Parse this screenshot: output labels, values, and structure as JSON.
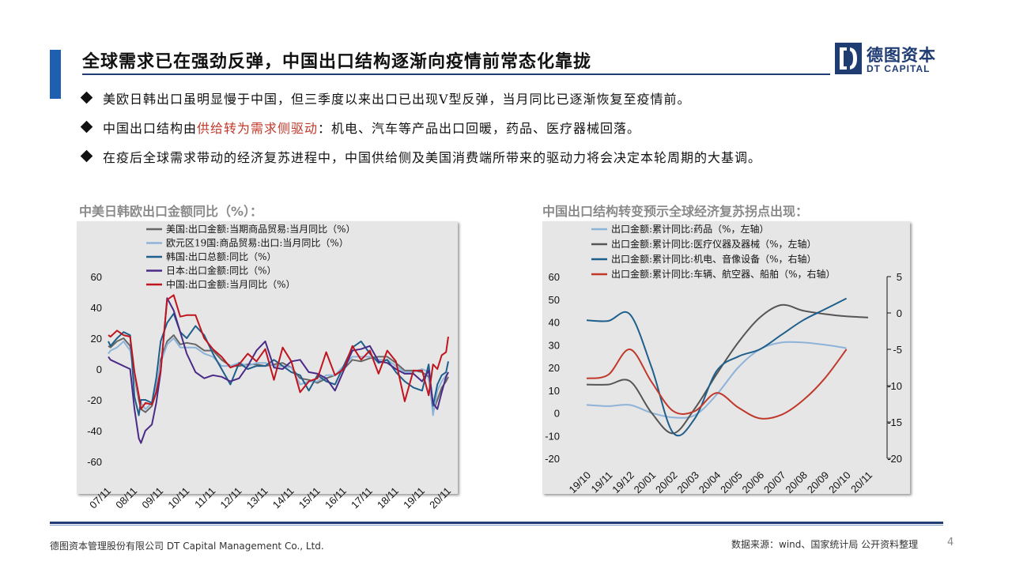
{
  "header": {
    "title": "全球需求已在强劲反弹，中国出口结构逐渐向疫情前常态化靠拢",
    "logo_cn": "德图资本",
    "logo_en": "DT CAPITAL"
  },
  "bullets": [
    {
      "pre": "美欧日韩出口虽明显慢于中国，但三季度以来出口已出现V型反弹，当月同比已逐渐恢复至疫情前。",
      "highlight": "",
      "post": ""
    },
    {
      "pre": "中国出口结构由",
      "highlight": "供给转为需求侧驱动",
      "post": "：机电、汽车等产品出口回暖，药品、医疗器械回落。"
    },
    {
      "pre": "在疫后全球需求带动的经济复苏进程中，中国供给侧及美国消费端所带来的驱动力将会决定本轮周期的大基调。",
      "highlight": "",
      "post": ""
    }
  ],
  "colors": {
    "brand": "#1f3c73",
    "accent": "#1f5fb2",
    "highlight": "#c0392b",
    "chart_bg": "#e6e6e6"
  },
  "chart_data": [
    {
      "type": "line",
      "title": "中美日韩欧出口金额同比（%）：",
      "ylim": [
        -60,
        60
      ],
      "yticks": [
        -60,
        -40,
        -20,
        0,
        20,
        40,
        60
      ],
      "xticks": [
        "07/11",
        "08/11",
        "09/11",
        "10/11",
        "11/11",
        "12/11",
        "13/11",
        "14/11",
        "15/11",
        "16/11",
        "17/11",
        "18/11",
        "19/11",
        "20/11"
      ],
      "x": [
        "07/11",
        "07/12",
        "08/03",
        "08/06",
        "08/09",
        "08/11",
        "09/01",
        "09/02",
        "09/04",
        "09/07",
        "09/09",
        "09/11",
        "10/02",
        "10/05",
        "10/08",
        "10/11",
        "11/03",
        "11/07",
        "11/11",
        "12/03",
        "12/07",
        "12/11",
        "13/03",
        "13/07",
        "13/11",
        "14/03",
        "14/07",
        "14/11",
        "15/03",
        "15/07",
        "15/11",
        "16/03",
        "16/07",
        "16/11",
        "17/03",
        "17/07",
        "17/11",
        "18/03",
        "18/07",
        "18/11",
        "19/03",
        "19/07",
        "19/11",
        "20/02",
        "20/04",
        "20/06",
        "20/08",
        "20/10",
        "20/11"
      ],
      "series": [
        {
          "name": "美国:出口金额:当期商品贸易:当月同比（%）",
          "color": "#666666",
          "values": [
            15,
            14,
            18,
            20,
            15,
            -5,
            -20,
            -26,
            -28,
            -24,
            -15,
            6,
            18,
            22,
            16,
            17,
            16,
            12,
            12,
            6,
            2,
            2,
            3,
            3,
            2,
            3,
            4,
            1,
            -6,
            -7,
            -9,
            -6,
            -4,
            0,
            6,
            5,
            7,
            8,
            8,
            4,
            -1,
            -1,
            -2,
            -5,
            -28,
            -20,
            -12,
            -8,
            -5
          ]
        },
        {
          "name": "欧元区19国:商品贸易:出口:当月同比（%）",
          "color": "#8db3d9",
          "values": [
            10,
            12,
            14,
            18,
            12,
            -4,
            -18,
            -22,
            -26,
            -22,
            -12,
            4,
            16,
            20,
            14,
            14,
            14,
            10,
            8,
            2,
            2,
            4,
            2,
            4,
            4,
            2,
            2,
            1,
            -10,
            -8,
            -8,
            -4,
            -4,
            2,
            8,
            8,
            8,
            6,
            6,
            2,
            -2,
            -2,
            0,
            -2,
            -30,
            -14,
            -8,
            -4,
            -2
          ]
        },
        {
          "name": "韩国:出口总额:同比（%）",
          "color": "#1f5f8b",
          "values": [
            18,
            15,
            20,
            24,
            22,
            -18,
            -30,
            -20,
            -20,
            -22,
            -6,
            18,
            30,
            36,
            24,
            20,
            28,
            22,
            10,
            0,
            -10,
            4,
            0,
            2,
            2,
            6,
            2,
            -2,
            -4,
            -14,
            -4,
            -8,
            -10,
            2,
            14,
            18,
            10,
            4,
            6,
            -2,
            -8,
            -12,
            -14,
            3,
            -24,
            -10,
            -4,
            -2,
            5
          ]
        },
        {
          "name": "日本:出口金额:同比（%）",
          "color": "#4b2a87",
          "values": [
            8,
            6,
            4,
            2,
            0,
            -26,
            -45,
            -48,
            -40,
            -36,
            -22,
            -2,
            46,
            38,
            24,
            10,
            -2,
            -6,
            -4,
            -5,
            -8,
            -6,
            2,
            12,
            18,
            1,
            0,
            5,
            6,
            -2,
            -3,
            -6,
            -14,
            -1,
            12,
            13,
            15,
            5,
            4,
            0,
            -3,
            -3,
            -8,
            -1,
            -22,
            -26,
            -15,
            -5,
            -2
          ]
        },
        {
          "name": "中国:出口金额:当月同比（%）",
          "color": "#c0141e",
          "values": [
            22,
            21,
            25,
            22,
            21,
            -2,
            -17,
            -26,
            -22,
            -23,
            -15,
            -1,
            45,
            48,
            34,
            35,
            35,
            20,
            13,
            8,
            1,
            3,
            10,
            5,
            13,
            -7,
            14,
            5,
            -15,
            -8,
            -6,
            11,
            -4,
            0,
            15,
            6,
            12,
            -3,
            12,
            5,
            -21,
            -1,
            -1,
            -17,
            3,
            0,
            9,
            11,
            21
          ]
        }
      ]
    },
    {
      "type": "line",
      "title": "中国出口结构转变预示全球经济复苏拐点出现：",
      "ylim_left": [
        -20,
        60
      ],
      "ylim_right": [
        -20,
        5
      ],
      "yticks_left": [
        -20,
        -10,
        0,
        10,
        20,
        30,
        40,
        50,
        60
      ],
      "yticks_right": [
        -20,
        -15,
        -10,
        -5,
        0,
        5
      ],
      "categories": [
        "19/10",
        "19/11",
        "19/12",
        "20/01",
        "20/02",
        "20/03",
        "20/04",
        "20/05",
        "20/06",
        "20/07",
        "20/08",
        "20/09",
        "20/10",
        "20/11"
      ],
      "series": [
        {
          "name": "出口金额:累计同比:药品（%，左轴）",
          "axis": "left",
          "color": "#8db3d9",
          "values": [
            3.5,
            3.0,
            3.5,
            0,
            -2.0,
            -1.0,
            8,
            20,
            28,
            31,
            31,
            30,
            28.5,
            null
          ]
        },
        {
          "name": "出口金额:累计同比:医疗仪器及器械（%，左轴）",
          "axis": "left",
          "color": "#555555",
          "values": [
            12.5,
            12.5,
            14,
            0,
            -9,
            2,
            17,
            31,
            42,
            47.5,
            45,
            43.5,
            42.5,
            42
          ]
        },
        {
          "name": "出口金额:累计同比:机电、音像设备（%，右轴）",
          "axis": "right",
          "color": "#1f5f8b",
          "values": [
            -1.0,
            -1.1,
            -0.2,
            -7.5,
            -16.5,
            -14.5,
            -8.0,
            -6.0,
            -5.0,
            -3.0,
            -1.0,
            0.5,
            2.0,
            null
          ]
        },
        {
          "name": "出口金额:累计同比:车辆、航空器、船舶（%，右轴）",
          "axis": "right",
          "color": "#c0392b",
          "values": [
            -9.0,
            -8.5,
            -5.0,
            -9.5,
            -13.5,
            -13.5,
            -11.0,
            -13.0,
            -14.5,
            -14.0,
            -12.0,
            -9.0,
            -5.0,
            null
          ]
        }
      ]
    }
  ],
  "footer": {
    "company": "德图资本管理股份有限公司  DT Capital Management  Co., Ltd.",
    "source": "数据来源：wind、国家统计局  公开资料整理",
    "page": "4"
  }
}
